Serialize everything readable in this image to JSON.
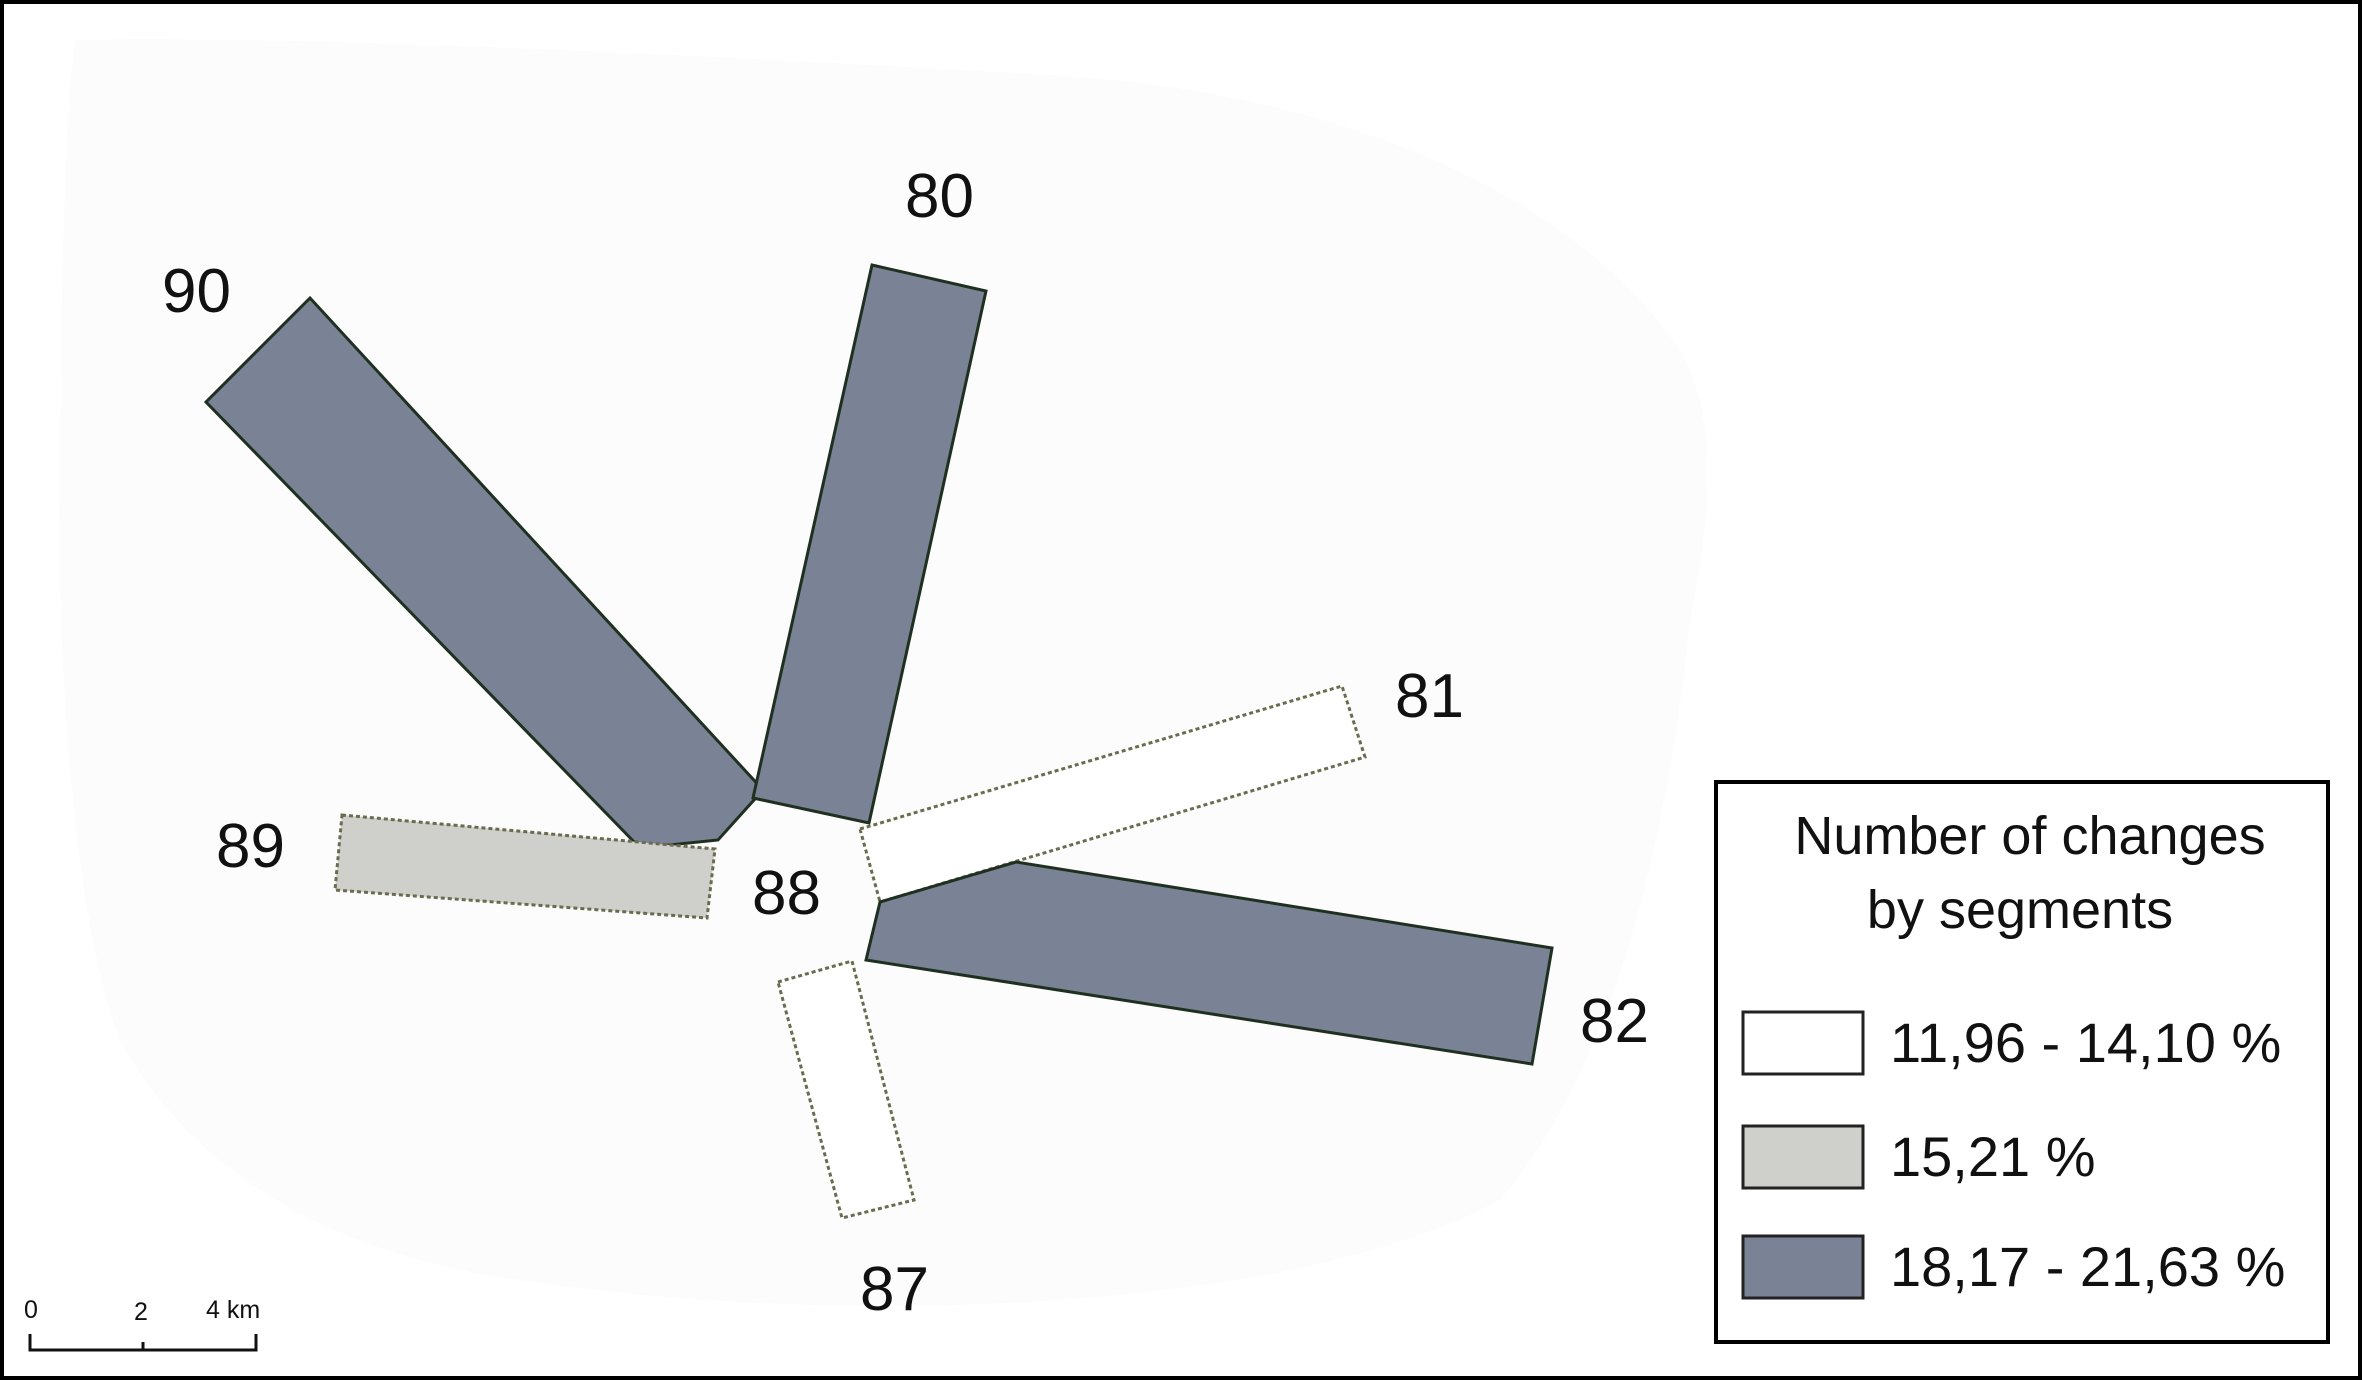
{
  "legend": {
    "title_line1": "Number of changes",
    "title_line2": "by segments",
    "classes": [
      {
        "id": "low",
        "label": "11,96 - 14,10 %",
        "fill": "#ffffff",
        "stroke": "#6b6b50"
      },
      {
        "id": "mid",
        "label": "15,21 %",
        "fill": "#cfcfcb",
        "stroke": "#6b6b50"
      },
      {
        "id": "high",
        "label": "18,17 - 21,63 %",
        "fill": "#7a8295",
        "stroke": "#1f3020"
      }
    ]
  },
  "segments": [
    {
      "id": "80",
      "label": "80",
      "class": "high"
    },
    {
      "id": "81",
      "label": "81",
      "class": "low"
    },
    {
      "id": "82",
      "label": "82",
      "class": "high"
    },
    {
      "id": "87",
      "label": "87",
      "class": "low"
    },
    {
      "id": "88",
      "label": "88",
      "class": "none"
    },
    {
      "id": "89",
      "label": "89",
      "class": "mid"
    },
    {
      "id": "90",
      "label": "90",
      "class": "high"
    }
  ],
  "scale_bar": {
    "tick_0": "0",
    "tick_2": "2",
    "tick_4": "4 km"
  },
  "colors": {
    "background_area": "#fcfcfc",
    "frame": "#000000"
  }
}
